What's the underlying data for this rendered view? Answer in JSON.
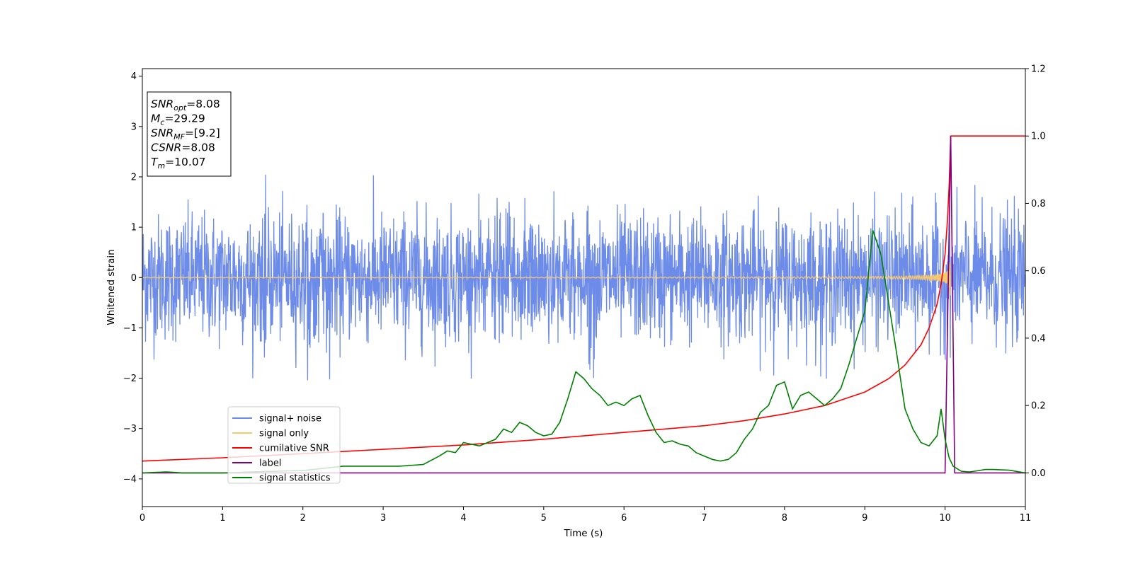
{
  "chart_data": {
    "type": "line",
    "xlabel": "Time (s)",
    "ylabel": "Whitened strain",
    "xlim": [
      0,
      11
    ],
    "ylim": [
      -4.55,
      4.15
    ],
    "y2lim": [
      -0.1,
      1.2
    ],
    "x_ticks": [
      "0",
      "1",
      "2",
      "3",
      "4",
      "5",
      "6",
      "7",
      "8",
      "9",
      "10",
      "11"
    ],
    "y_ticks": [
      "−4",
      "−3",
      "−2",
      "−1",
      "0",
      "1",
      "2",
      "3",
      "4"
    ],
    "y_tick_values": [
      -4,
      -3,
      -2,
      -1,
      0,
      1,
      2,
      3,
      4
    ],
    "y2_ticks": [
      "0.0",
      "0.2",
      "0.4",
      "0.6",
      "0.8",
      "1.0",
      "1.2"
    ],
    "y2_tick_values": [
      0.0,
      0.2,
      0.4,
      0.6,
      0.8,
      1.0,
      1.2
    ],
    "info_box": [
      {
        "base": "SNR",
        "sub": "opt",
        "value": "=8.08"
      },
      {
        "base": "M",
        "sub": "c",
        "value": "=29.29"
      },
      {
        "base": "SNR",
        "sub": "MF",
        "value": "=[9.2]"
      },
      {
        "base": "CSNR",
        "sub": "",
        "value": "=8.08"
      },
      {
        "base": "T",
        "sub": "m",
        "value": "=10.07"
      }
    ],
    "legend_position": "lower-left",
    "series": [
      {
        "name": "signal+ noise",
        "color": "#6d8be8",
        "axis": "left",
        "kind": "noise",
        "x_range": [
          0,
          11
        ],
        "typical_amplitude": 1.0,
        "peak_amplitude": 2.05
      },
      {
        "name": "signal only",
        "color": "#f5c76f",
        "axis": "left",
        "kind": "chirp",
        "x_range": [
          0,
          10.07
        ],
        "merger_time": 10.07,
        "peak_amplitude": 0.4
      },
      {
        "name": "cumilative SNR",
        "color": "#ff0000",
        "axis": "right",
        "x": [
          0,
          1,
          2,
          3,
          4,
          5,
          6,
          7,
          7.5,
          8,
          8.5,
          9,
          9.3,
          9.5,
          9.7,
          9.8,
          9.9,
          9.95,
          10.0,
          10.03,
          10.05,
          10.07,
          11
        ],
        "values": [
          0.035,
          0.045,
          0.057,
          0.07,
          0.083,
          0.1,
          0.12,
          0.14,
          0.155,
          0.175,
          0.2,
          0.24,
          0.28,
          0.32,
          0.38,
          0.43,
          0.5,
          0.56,
          0.65,
          0.75,
          0.85,
          1.0,
          1.0
        ]
      },
      {
        "name": "label",
        "color": "#800080",
        "axis": "right",
        "x": [
          0,
          10.0,
          10.07,
          10.12,
          11
        ],
        "values": [
          0.0,
          0.0,
          1.0,
          0.0,
          0.0
        ]
      },
      {
        "name": "signal statistics",
        "color": "#008000",
        "axis": "right",
        "x": [
          0,
          0.3,
          0.5,
          1.0,
          1.5,
          2.0,
          2.5,
          3.0,
          3.2,
          3.5,
          3.7,
          3.8,
          3.9,
          4.0,
          4.2,
          4.4,
          4.5,
          4.6,
          4.7,
          4.8,
          4.9,
          5.0,
          5.1,
          5.2,
          5.3,
          5.4,
          5.5,
          5.6,
          5.7,
          5.8,
          5.9,
          6.0,
          6.1,
          6.2,
          6.3,
          6.4,
          6.5,
          6.6,
          6.7,
          6.8,
          6.9,
          7.0,
          7.1,
          7.2,
          7.3,
          7.4,
          7.5,
          7.6,
          7.7,
          7.8,
          7.9,
          8.0,
          8.1,
          8.2,
          8.3,
          8.4,
          8.5,
          8.6,
          8.7,
          8.8,
          8.9,
          9.0,
          9.1,
          9.2,
          9.3,
          9.4,
          9.5,
          9.6,
          9.7,
          9.8,
          9.9,
          9.95,
          10.0,
          10.05,
          10.1,
          10.2,
          10.3,
          10.4,
          10.5,
          10.6,
          10.8,
          11.0
        ],
        "values": [
          0.0,
          0.003,
          0.0,
          0.0,
          0.004,
          0.007,
          0.02,
          0.02,
          0.02,
          0.025,
          0.05,
          0.065,
          0.06,
          0.09,
          0.08,
          0.1,
          0.13,
          0.12,
          0.15,
          0.14,
          0.12,
          0.11,
          0.115,
          0.15,
          0.22,
          0.3,
          0.28,
          0.25,
          0.23,
          0.2,
          0.21,
          0.2,
          0.22,
          0.23,
          0.17,
          0.12,
          0.09,
          0.095,
          0.085,
          0.08,
          0.06,
          0.05,
          0.04,
          0.035,
          0.04,
          0.06,
          0.1,
          0.13,
          0.18,
          0.2,
          0.26,
          0.27,
          0.19,
          0.23,
          0.24,
          0.22,
          0.2,
          0.22,
          0.25,
          0.32,
          0.4,
          0.48,
          0.72,
          0.65,
          0.5,
          0.35,
          0.19,
          0.13,
          0.09,
          0.08,
          0.11,
          0.19,
          0.1,
          0.045,
          0.02,
          0.005,
          0.003,
          0.006,
          0.01,
          0.01,
          0.008,
          0.0
        ]
      }
    ]
  }
}
